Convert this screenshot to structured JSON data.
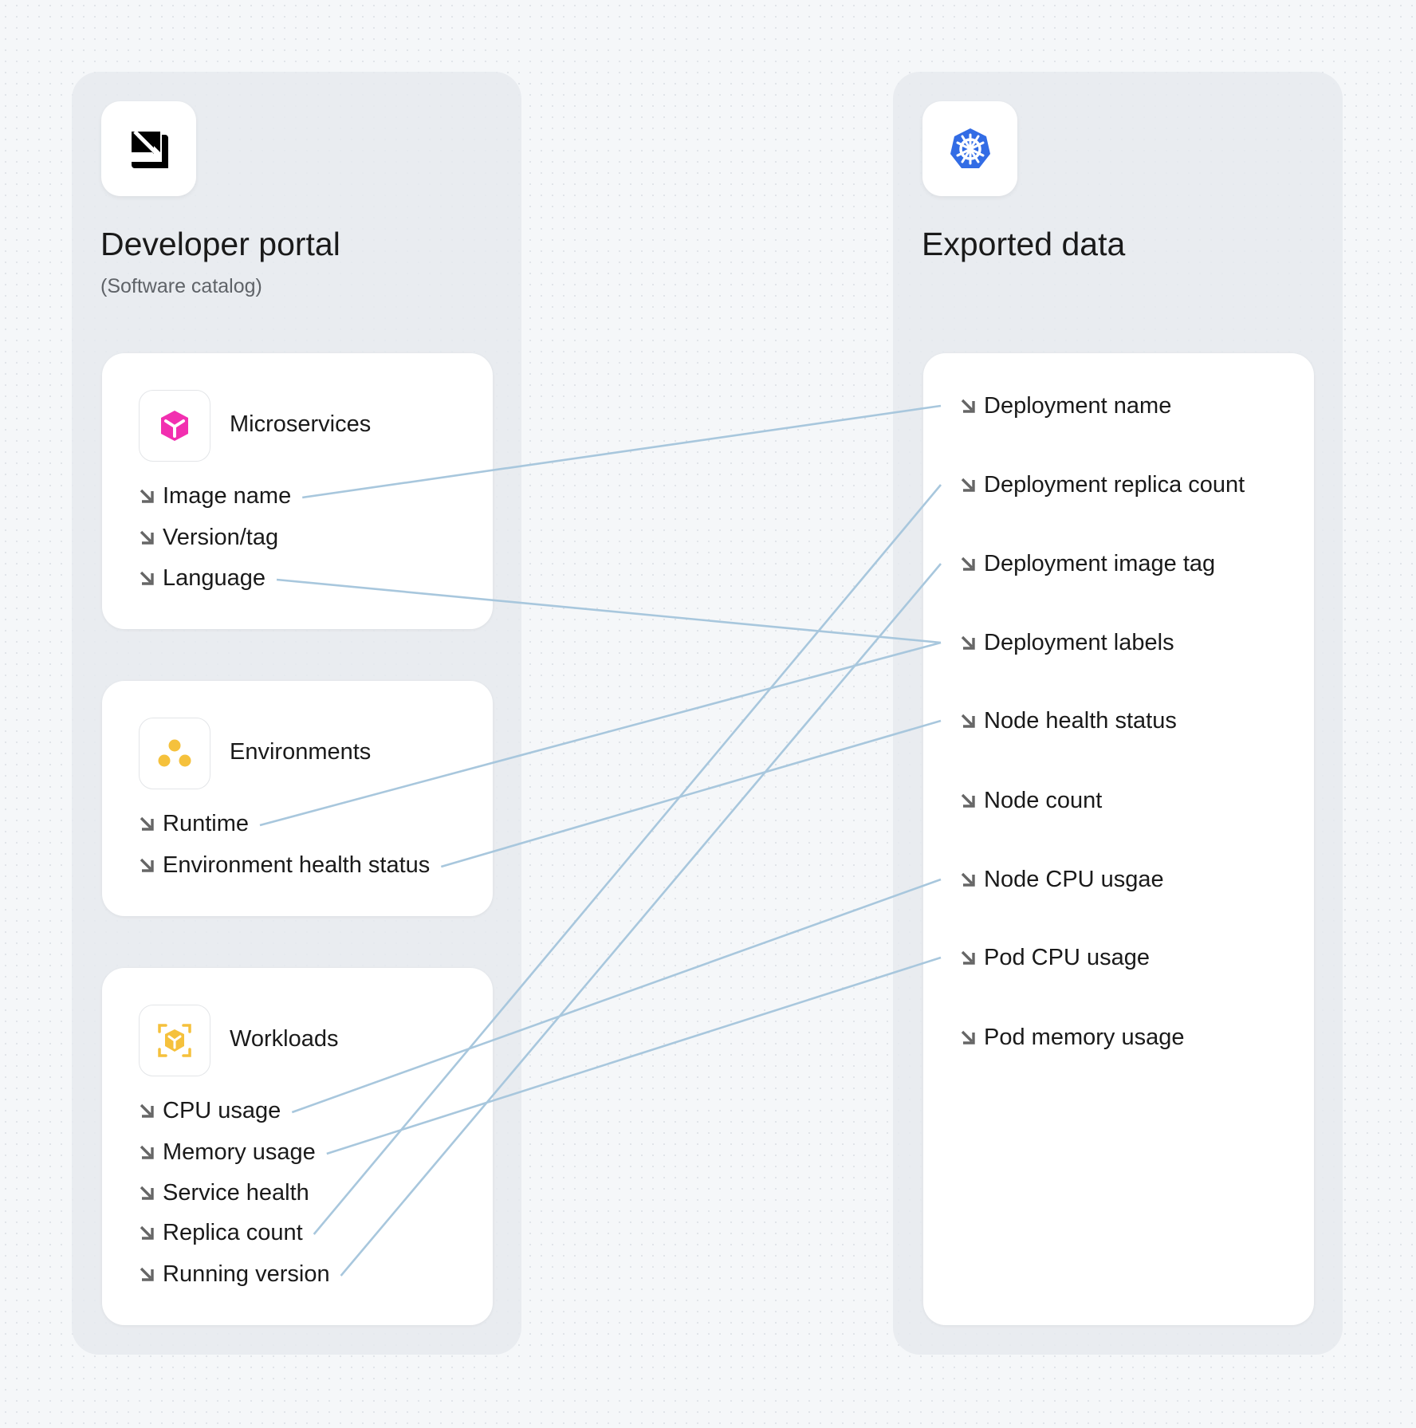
{
  "left": {
    "title": "Developer portal",
    "subtitle": "(Software catalog)",
    "logo_icon": "port-logo-icon",
    "cards": [
      {
        "title": "Microservices",
        "icon": "cube-icon",
        "icon_color": "#f22fb0",
        "items": [
          "Image name",
          "Version/tag",
          "Language"
        ]
      },
      {
        "title": "Environments",
        "icon": "three-dots-icon",
        "icon_color": "#f5c13c",
        "items": [
          "Runtime",
          "Environment health status"
        ]
      },
      {
        "title": "Workloads",
        "icon": "focus-cube-icon",
        "icon_color": "#f5c13c",
        "items": [
          "CPU usage",
          "Memory usage",
          "Service health",
          "Replica count",
          "Running version"
        ]
      }
    ]
  },
  "right": {
    "title": "Exported data",
    "logo_icon": "kubernetes-icon",
    "logo_color": "#326ce5",
    "items": [
      "Deployment name",
      "Deployment replica count",
      "Deployment image tag",
      "Deployment labels",
      "Node health status",
      "Node count",
      "Node CPU usgae",
      "Pod CPU usage",
      "Pod memory usage"
    ]
  },
  "connections": [
    {
      "from": "Image name",
      "to": "Deployment name"
    },
    {
      "from": "Language",
      "to": "Deployment labels"
    },
    {
      "from": "Runtime",
      "to": "Deployment labels"
    },
    {
      "from": "Environment health status",
      "to": "Node health status"
    },
    {
      "from": "CPU usage",
      "to": "Node CPU usgae"
    },
    {
      "from": "Memory usage",
      "to": "Pod CPU usage"
    },
    {
      "from": "Replica count",
      "to": "Deployment replica count"
    },
    {
      "from": "Running version",
      "to": "Deployment image tag"
    }
  ],
  "colors": {
    "connector": "#a8c7dd",
    "arrow": "#666666"
  }
}
